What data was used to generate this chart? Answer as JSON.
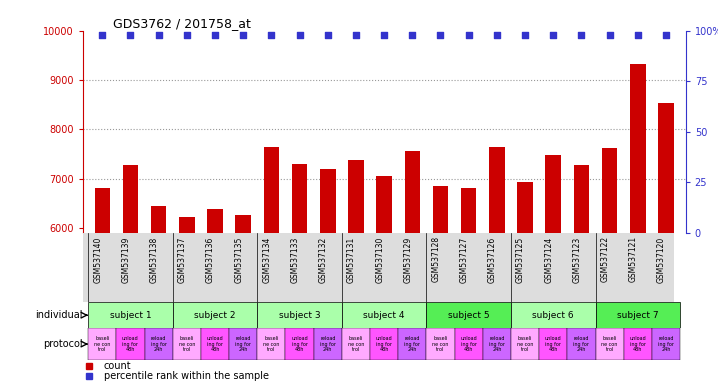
{
  "title": "GDS3762 / 201758_at",
  "samples": [
    "GSM537140",
    "GSM537139",
    "GSM537138",
    "GSM537137",
    "GSM537136",
    "GSM537135",
    "GSM537134",
    "GSM537133",
    "GSM537132",
    "GSM537131",
    "GSM537130",
    "GSM537129",
    "GSM537128",
    "GSM537127",
    "GSM537126",
    "GSM537125",
    "GSM537124",
    "GSM537123",
    "GSM537122",
    "GSM537121",
    "GSM537120"
  ],
  "bar_values": [
    6820,
    7280,
    6450,
    6220,
    6380,
    6260,
    7650,
    7290,
    7190,
    7380,
    7050,
    7570,
    6850,
    6800,
    7640,
    6940,
    7470,
    7270,
    7620,
    9320,
    8540
  ],
  "percentile_values": [
    98,
    98,
    98,
    98,
    98,
    98,
    98,
    98,
    98,
    98,
    98,
    98,
    98,
    98,
    98,
    98,
    98,
    98,
    98,
    98,
    98
  ],
  "bar_color": "#cc0000",
  "percentile_color": "#3333cc",
  "ylim_left": [
    5900,
    10000
  ],
  "ylim_right": [
    0,
    100
  ],
  "yticks_left": [
    6000,
    7000,
    8000,
    9000,
    10000
  ],
  "yticks_right": [
    0,
    25,
    50,
    75,
    100
  ],
  "grid_yticks": [
    7000,
    8000,
    9000
  ],
  "grid_color": "#999999",
  "subjects": [
    {
      "label": "subject 1",
      "start": 0,
      "end": 3,
      "color": "#aaffaa"
    },
    {
      "label": "subject 2",
      "start": 3,
      "end": 6,
      "color": "#aaffaa"
    },
    {
      "label": "subject 3",
      "start": 6,
      "end": 9,
      "color": "#aaffaa"
    },
    {
      "label": "subject 4",
      "start": 9,
      "end": 12,
      "color": "#aaffaa"
    },
    {
      "label": "subject 5",
      "start": 12,
      "end": 15,
      "color": "#55ee55"
    },
    {
      "label": "subject 6",
      "start": 15,
      "end": 18,
      "color": "#aaffaa"
    },
    {
      "label": "subject 7",
      "start": 18,
      "end": 21,
      "color": "#55ee55"
    }
  ],
  "prot_labels": [
    "baseli\nne con\ntrol",
    "unload\ning for\n48h",
    "reload\ning for\n24h"
  ],
  "prot_colors": [
    "#ffaaff",
    "#ff55ff",
    "#cc66ff"
  ],
  "tick_label_color": "#cc0000",
  "right_axis_color": "#3333cc",
  "bg_color": "#ffffff"
}
